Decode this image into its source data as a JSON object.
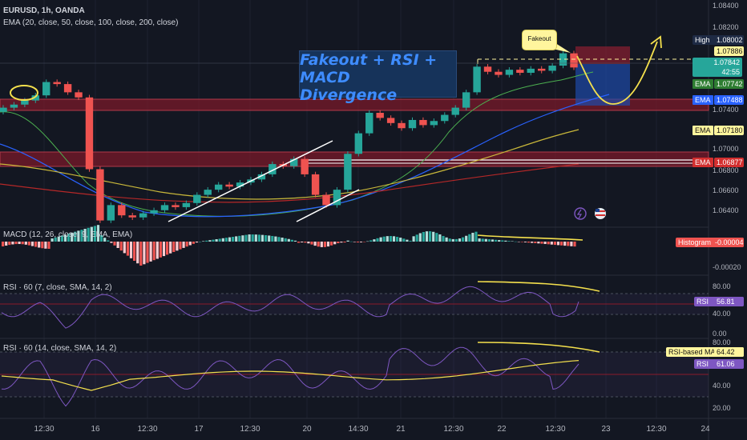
{
  "header": {
    "symbol_line": "EURUSD, 1h, OANDA",
    "ema_line": "EMA (20, close, 50, close, 100, close, 200, close)"
  },
  "annotation": {
    "line1": "Fakeout + RSI + MACD",
    "line2": " Divergence"
  },
  "fakeout_label": "Fakeout",
  "colors": {
    "bg": "#131722",
    "bull": "#26a69a",
    "bear": "#ef5350",
    "ema20": "#4caf50",
    "ema50": "#2962ff",
    "ema100": "#d4c23a",
    "ema200": "#c62828",
    "rsi": "#7e57c2",
    "rsi_ma": "#f4e04d",
    "zone": "#8b1a2b"
  },
  "price_axis": {
    "ticks": [
      "1.08400",
      "1.08200",
      "1.07400",
      "1.07000",
      "1.06800",
      "1.06600",
      "1.06400"
    ]
  },
  "price_badges": {
    "high_label": "High",
    "high_value": "1.08002",
    "yellow": "1.07886",
    "last": "1.07842",
    "countdown": "42:55",
    "ema_label": "EMA",
    "ema20": "1.07742",
    "ema50": "1.07488",
    "ema100": "1.07180",
    "ema200": "1.06877"
  },
  "macd": {
    "title": "MACD (12, 26, close, 9, EMA, EMA)",
    "hist_label": "Histogram",
    "hist_value": "-0.00004",
    "axis_tick": "-0.00020"
  },
  "rsi1": {
    "title": "RSI · 60 (7, close, SMA, 14, 2)",
    "label": "RSI",
    "value": "56.81",
    "ticks": [
      "80.00",
      "40.00",
      "0.00"
    ]
  },
  "rsi2": {
    "title": "RSI · 60 (14, close, SMA, 14, 2)",
    "ma_label": "RSI-based MA",
    "ma_value": "64.42",
    "label": "RSI",
    "value": "61.06",
    "ticks": [
      "80.00",
      "40.00",
      "20.00"
    ]
  },
  "time_axis": {
    "labels": [
      "12:30",
      "16",
      "12:30",
      "17",
      "12:30",
      "20",
      "14:30",
      "21",
      "12:30",
      "22",
      "12:30",
      "23",
      "12:30",
      "24"
    ]
  },
  "chart_data": {
    "type": "candlestick",
    "symbol": "EURUSD",
    "interval": "1h",
    "y_range": [
      1.063,
      1.085
    ],
    "x_labels": [
      "12:30",
      "16",
      "12:30",
      "17",
      "12:30",
      "20",
      "14:30",
      "21",
      "12:30",
      "22",
      "12:30",
      "23",
      "12:30",
      "24"
    ],
    "candles_close": [
      1.0745,
      1.0748,
      1.0752,
      1.0757,
      1.077,
      1.0768,
      1.076,
      1.0755,
      1.0685,
      1.0635,
      1.065,
      1.064,
      1.0638,
      1.0642,
      1.0645,
      1.065,
      1.0648,
      1.0652,
      1.066,
      1.0665,
      1.067,
      1.0668,
      1.0672,
      1.0675,
      1.068,
      1.069,
      1.0688,
      1.0695,
      1.068,
      1.066,
      1.065,
      1.0665,
      1.07,
      1.072,
      1.074,
      1.0735,
      1.073,
      1.0725,
      1.0733,
      1.0728,
      1.0732,
      1.0738,
      1.0745,
      1.076,
      1.0785,
      1.078,
      1.0777,
      1.0782,
      1.0779,
      1.0783,
      1.0781,
      1.0786,
      1.0798,
      1.07842
    ],
    "resistance_zones": [
      [
        1.074,
        1.075
      ],
      [
        1.068,
        1.069
      ]
    ],
    "fakeout_high": 1.08002,
    "ema": {
      "ema20": 1.07742,
      "ema50": 1.07488,
      "ema100": 1.0718,
      "ema200": 1.06877
    },
    "macd_histogram_last": -4e-05,
    "rsi7_last": 56.81,
    "rsi14_last": 61.06,
    "rsi14_ma_last": 64.42
  }
}
